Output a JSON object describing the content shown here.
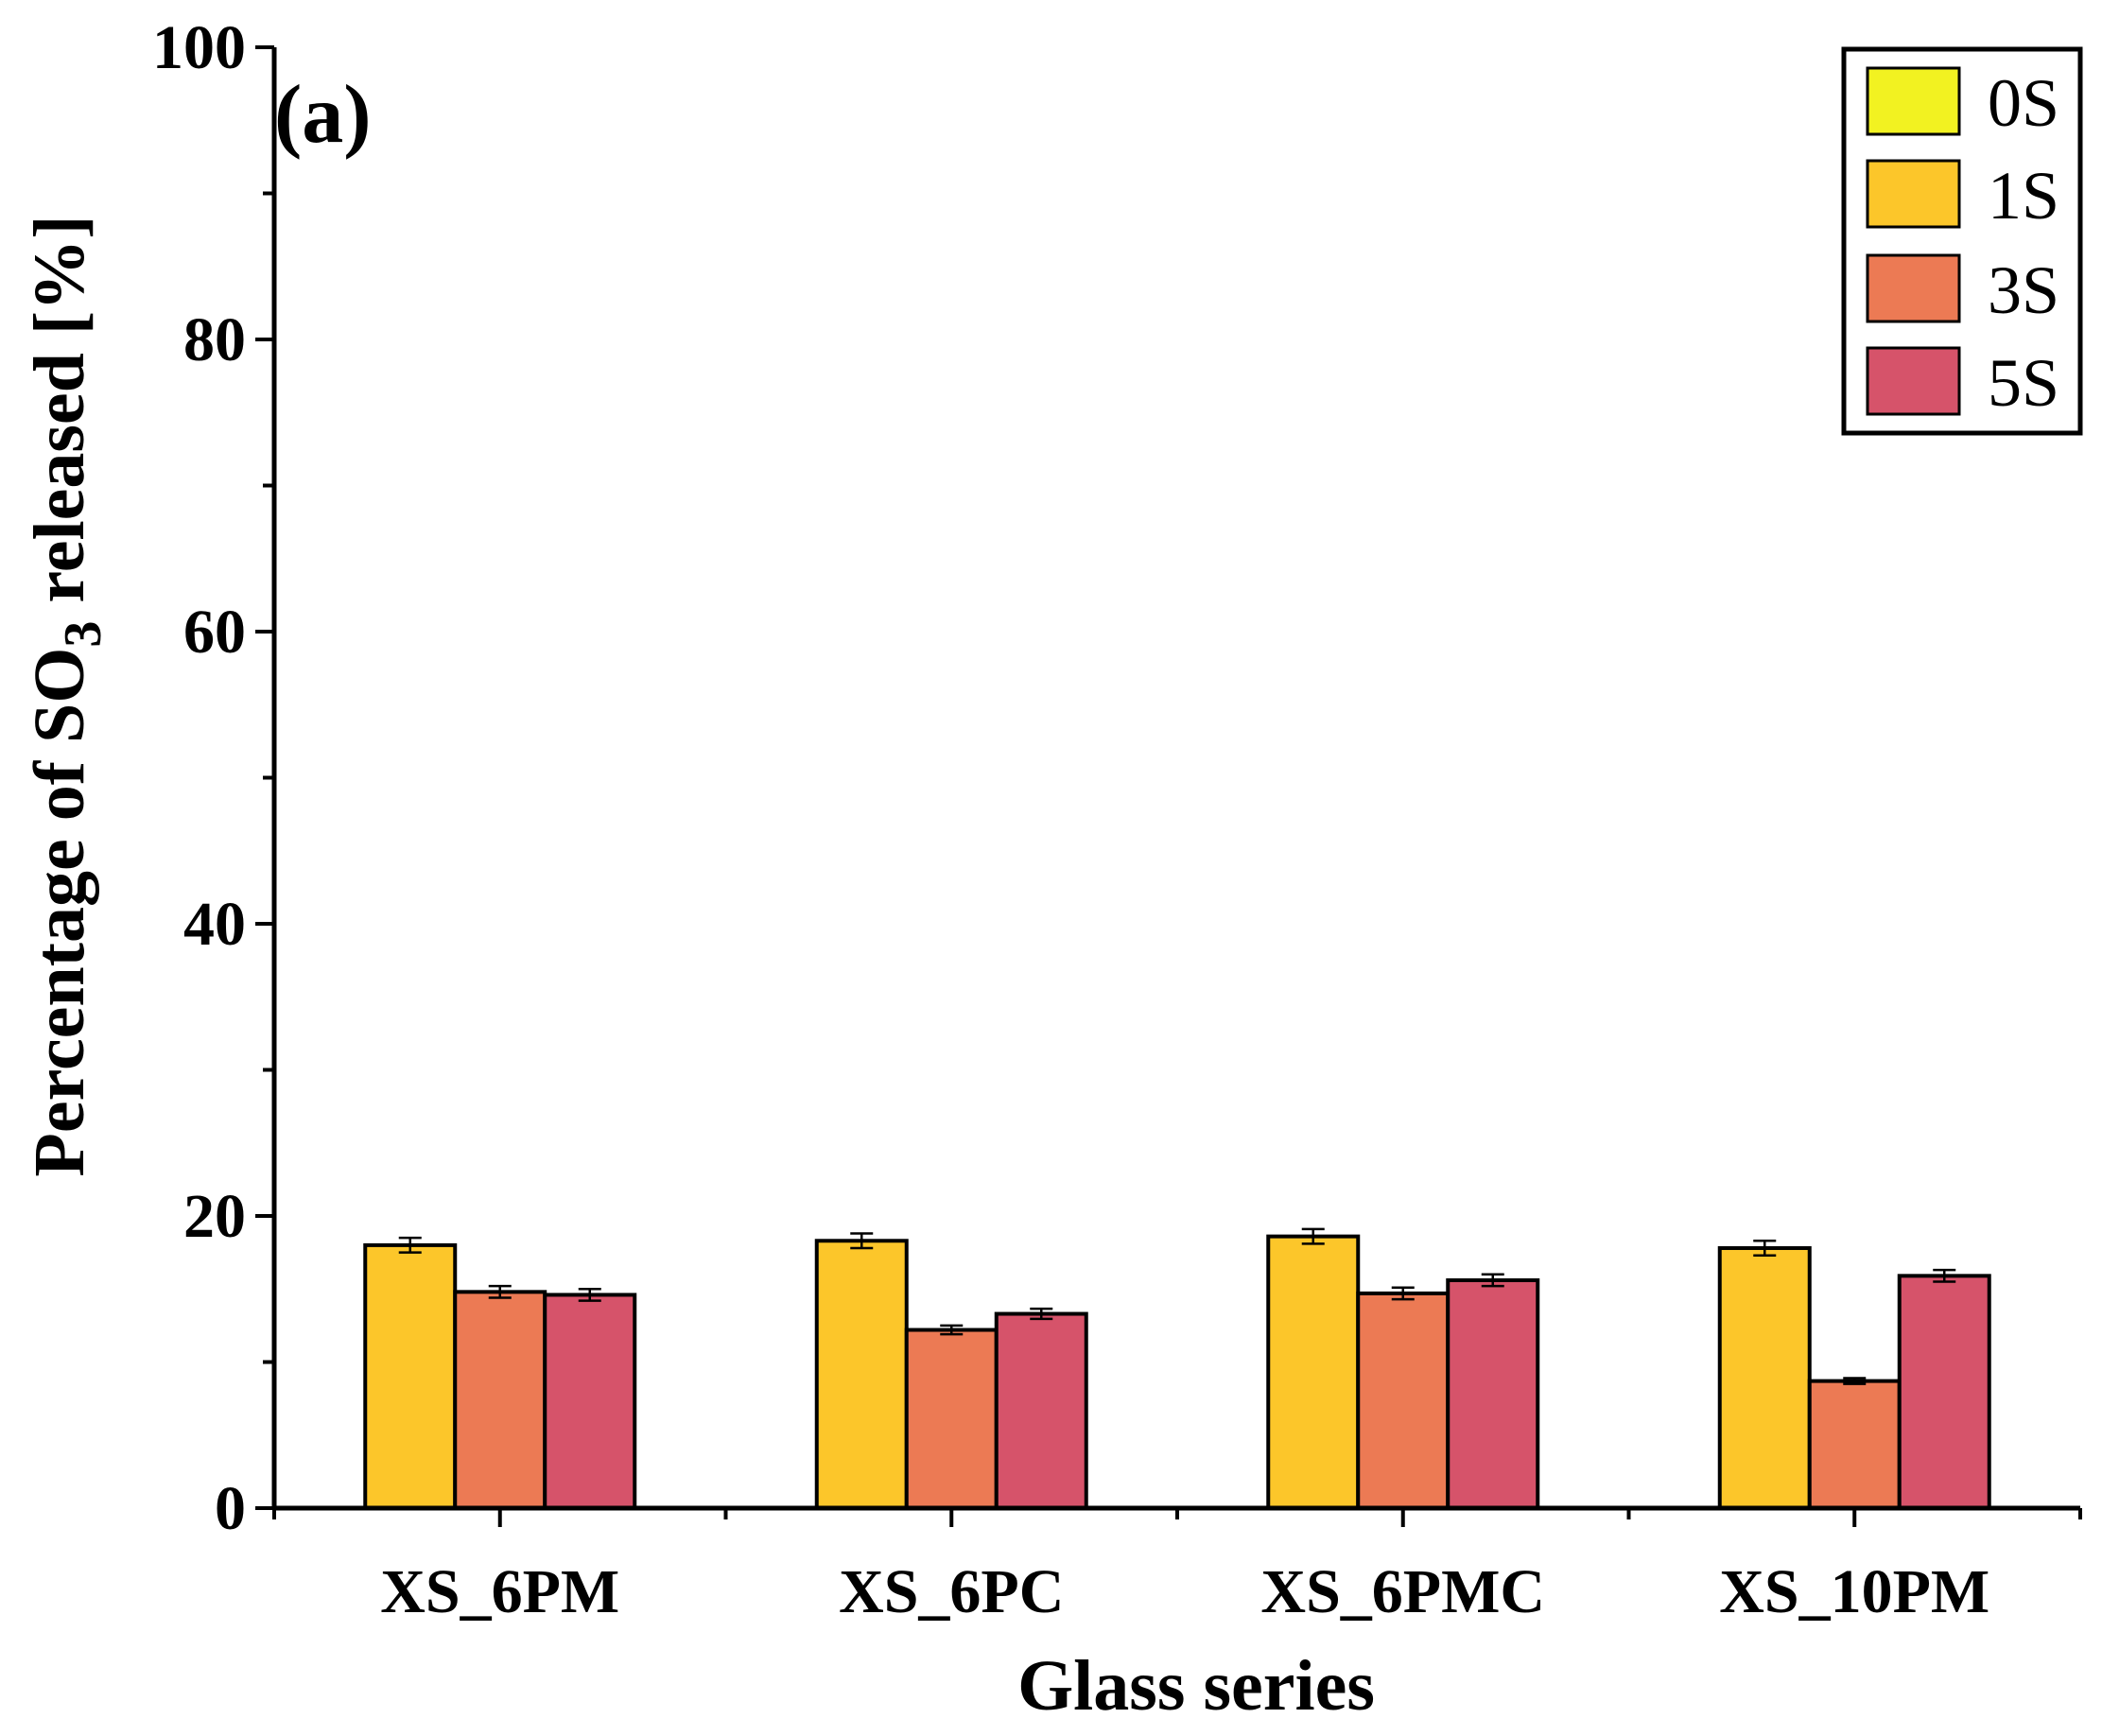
{
  "chart_data": {
    "type": "bar",
    "panel_label": "(a)",
    "title": "",
    "xlabel": "Glass series",
    "ylabel_prefix": "Percentage of SO",
    "ylabel_subscript": "3",
    "ylabel_suffix": " released [%]",
    "ylim": [
      0,
      100
    ],
    "yticks": [
      0,
      20,
      40,
      60,
      80,
      100
    ],
    "ytick_labels": [
      "0",
      "20",
      "40",
      "60",
      "80",
      "100"
    ],
    "minor_tick_step": 10,
    "categories": [
      "XS_6PM",
      "XS_6PC",
      "XS_6PMC",
      "XS_10PM"
    ],
    "series": [
      {
        "name": "0S",
        "color": "#f2f221",
        "values": [
          0,
          0,
          0,
          0
        ],
        "errors": [
          0,
          0,
          0,
          0
        ]
      },
      {
        "name": "1S",
        "color": "#fcc62a",
        "values": [
          18.0,
          18.3,
          18.6,
          17.8
        ],
        "errors": [
          0.5,
          0.5,
          0.5,
          0.5
        ]
      },
      {
        "name": "3S",
        "color": "#ec7a54",
        "values": [
          14.8,
          12.2,
          14.7,
          8.7
        ],
        "errors": [
          0.4,
          0.3,
          0.4,
          0.2
        ]
      },
      {
        "name": "5S",
        "color": "#d6536a",
        "values": [
          14.6,
          13.3,
          15.6,
          15.9
        ],
        "errors": [
          0.4,
          0.35,
          0.4,
          0.4
        ]
      }
    ],
    "legend_position": "top-right",
    "grid": false
  }
}
